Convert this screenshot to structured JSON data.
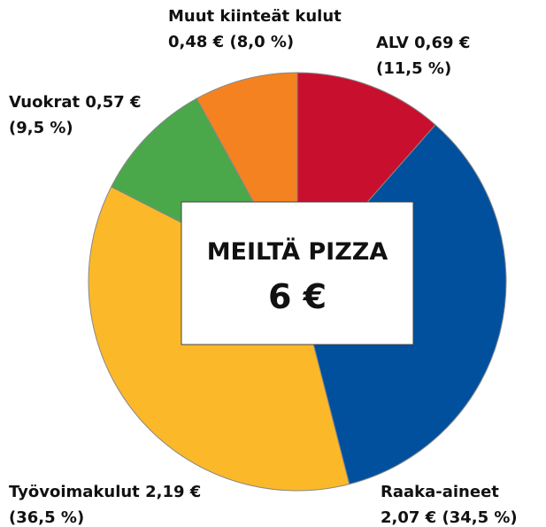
{
  "chart_data": {
    "type": "pie",
    "title": "MEILTÄ PIZZA",
    "subtitle": "6 €",
    "categories": [
      "ALV",
      "Raaka-aineet",
      "Työvoimakulut",
      "Vuokrat",
      "Muut kiinteät kulut"
    ],
    "values": [
      11.5,
      34.5,
      36.5,
      9.5,
      8.0
    ],
    "value_labels": [
      "(11,5 %)",
      "(34,5 %)",
      "(36,5 %)",
      "(9,5 %)",
      "(8,0 %)"
    ],
    "amounts": [
      0.69,
      2.07,
      2.19,
      0.57,
      0.48
    ],
    "amount_labels": [
      "0,69 €",
      "2,07 €",
      "2,19 €",
      "0,57 €",
      "0,48 €"
    ],
    "colors": [
      "#c8102e",
      "#00509e",
      "#fbb829",
      "#4aa84a",
      "#f58220"
    ]
  }
}
